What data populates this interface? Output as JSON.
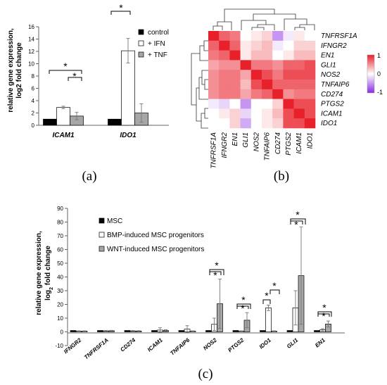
{
  "chart_data": [
    {
      "type": "bar",
      "panel_label": "(a)",
      "categories": [
        "ICAM1",
        "IDO1"
      ],
      "series": [
        {
          "name": "control",
          "values": [
            1,
            1
          ],
          "errors": [
            0,
            0
          ],
          "color": "#000000"
        },
        {
          "name": "+ IFN",
          "values": [
            2.9,
            12.1
          ],
          "errors": [
            0.2,
            2.0
          ],
          "color": "#ffffff"
        },
        {
          "name": "+ TNF",
          "values": [
            1.5,
            2.0
          ],
          "errors": [
            0.6,
            1.5
          ],
          "color": "#a6a6a6"
        }
      ],
      "ylabel_lines": [
        "relative gene expression,",
        "log2 fold change"
      ],
      "ylim": [
        0,
        16
      ],
      "yticks": [
        0,
        2,
        4,
        6,
        8,
        10,
        12,
        14,
        16
      ],
      "legend": "top-right",
      "significance_marks": [
        "*",
        "*",
        "*"
      ]
    },
    {
      "type": "heatmap",
      "panel_label": "(b)",
      "rows": [
        "TNFRSF1A",
        "IFNGR2",
        "EN1",
        "GLI1",
        "NOS2",
        "TNFAIP6",
        "CD274",
        "PTGS2",
        "ICAM1",
        "IDO1"
      ],
      "columns": [
        "TNFRSF1A",
        "IFNGR2",
        "EN1",
        "GLI1",
        "NOS2",
        "TNFAIP6",
        "CD274",
        "PTGS2",
        "ICAM1",
        "IDO1"
      ],
      "values": [
        [
          1.0,
          0.7,
          0.6,
          0.0,
          0.1,
          0.2,
          -0.5,
          -0.1,
          0.1,
          0.0
        ],
        [
          0.7,
          1.0,
          0.7,
          0.1,
          0.2,
          0.3,
          -0.1,
          0.0,
          0.2,
          0.2
        ],
        [
          0.6,
          0.7,
          1.0,
          0.1,
          0.3,
          0.3,
          0.0,
          0.1,
          0.3,
          0.3
        ],
        [
          0.4,
          0.5,
          0.5,
          1.0,
          0.6,
          0.6,
          0.5,
          0.7,
          0.7,
          0.8
        ],
        [
          0.5,
          0.6,
          0.6,
          0.4,
          1.0,
          0.8,
          0.6,
          0.8,
          0.8,
          0.8
        ],
        [
          0.5,
          0.6,
          0.6,
          0.3,
          0.8,
          1.0,
          0.7,
          0.7,
          0.7,
          0.7
        ],
        [
          0.5,
          0.6,
          0.6,
          0.4,
          0.6,
          0.7,
          1.0,
          0.5,
          0.6,
          0.6
        ],
        [
          -0.1,
          -0.2,
          0.0,
          -0.5,
          0.0,
          0.0,
          0.2,
          1.0,
          0.8,
          0.8
        ],
        [
          0.0,
          0.1,
          0.2,
          -0.2,
          0.0,
          0.1,
          0.3,
          0.8,
          1.0,
          0.8
        ],
        [
          0.0,
          0.0,
          0.2,
          -0.4,
          0.0,
          0.1,
          0.2,
          0.8,
          0.8,
          1.0
        ]
      ],
      "color_scale": {
        "min": -1,
        "max": 1,
        "ticks": [
          "1",
          "0",
          "-1"
        ],
        "low_color": "#8a2be2",
        "mid_color": "#ffffff",
        "high_color": "#e8202a"
      }
    },
    {
      "type": "bar",
      "panel_label": "(c)",
      "categories": [
        "IFNGR2",
        "TNFRSF1A",
        "CD274",
        "ICAM1",
        "TNFAIP6",
        "NOS2",
        "PTGS2",
        "IDO1",
        "GLI1",
        "EN1"
      ],
      "series": [
        {
          "name": "MSC",
          "values": [
            1,
            1,
            1,
            1,
            1,
            1,
            1,
            1,
            1,
            1
          ],
          "errors": [
            0,
            0,
            0,
            0,
            0,
            0,
            0,
            0,
            0,
            0
          ],
          "color": "#000000"
        },
        {
          "name": "BMP-induced MSC progenitors",
          "values": [
            0.5,
            0.7,
            0.7,
            1.3,
            2.0,
            5.5,
            0.5,
            17.5,
            17.5,
            1.5
          ],
          "errors": [
            0.3,
            0.3,
            0.3,
            1.7,
            2.5,
            4.5,
            0.3,
            2.0,
            12.5,
            0.8
          ],
          "color": "#ffffff"
        },
        {
          "name": "WNT-induced MSC progenitors",
          "values": [
            0.5,
            0.8,
            0.6,
            1.0,
            0.5,
            20.5,
            8.5,
            0.5,
            41.0,
            5.7
          ],
          "errors": [
            0.3,
            0.3,
            0.3,
            0.5,
            0.3,
            18.0,
            5.5,
            0.3,
            35.5,
            2.2
          ],
          "color": "#a6a6a6"
        }
      ],
      "ylabel_lines": [
        "relative gene expression,",
        "log",
        "2",
        " fold change"
      ],
      "ylim": [
        -10,
        90
      ],
      "yticks": [
        -10,
        0,
        10,
        20,
        30,
        40,
        50,
        60,
        70,
        80,
        90
      ],
      "legend": "top-left",
      "significance_marks": [
        "*",
        "*",
        "*",
        "*",
        "*",
        "*",
        "*",
        "*",
        "*",
        "*"
      ]
    }
  ]
}
